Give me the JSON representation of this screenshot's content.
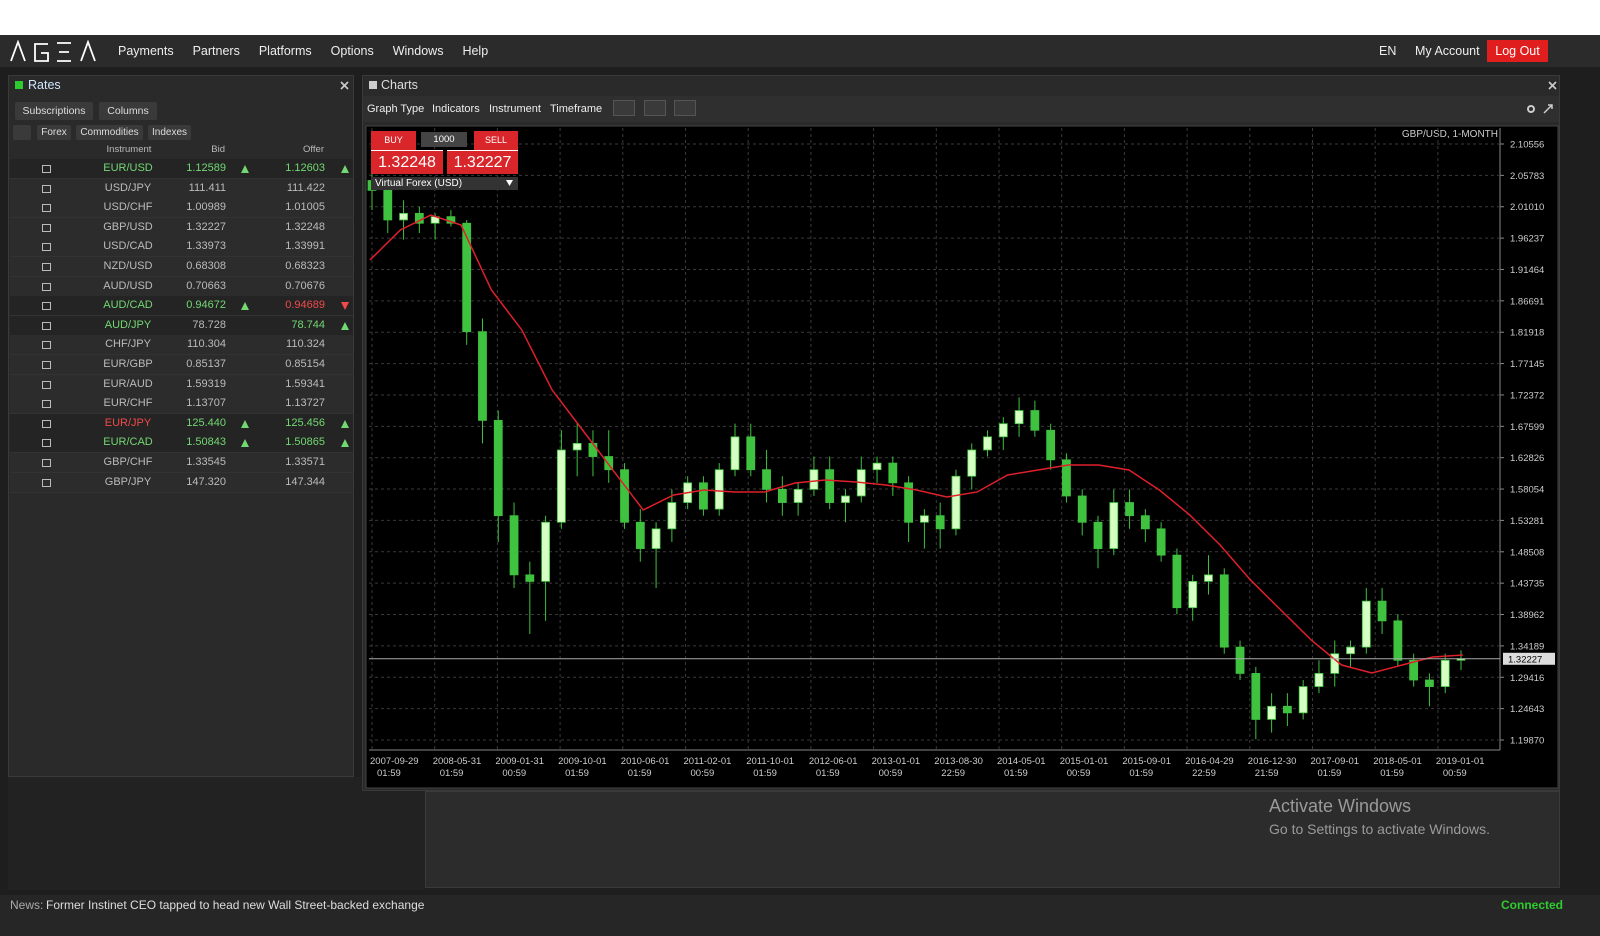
{
  "nav": {
    "menu": [
      "Payments",
      "Partners",
      "Platforms",
      "Options",
      "Windows",
      "Help"
    ],
    "language": "EN",
    "account": "My Account",
    "logout": "Log Out"
  },
  "rates": {
    "title": "Rates",
    "buttons": [
      "Subscriptions",
      "Columns"
    ],
    "tabs": [
      "Forex",
      "Commodities",
      "Indexes"
    ],
    "columns": [
      "Instrument",
      "Bid",
      "Offer"
    ],
    "rows": [
      {
        "instrument": "EUR/USD",
        "bid": "1.12589",
        "offer": "1.12603",
        "instrument_color": "#72d872",
        "bid_trend": "up",
        "offer_trend": "up"
      },
      {
        "instrument": "USD/JPY",
        "bid": "111.411",
        "offer": "111.422"
      },
      {
        "instrument": "USD/CHF",
        "bid": "1.00989",
        "offer": "1.01005"
      },
      {
        "instrument": "GBP/USD",
        "bid": "1.32227",
        "offer": "1.32248"
      },
      {
        "instrument": "USD/CAD",
        "bid": "1.33973",
        "offer": "1.33991"
      },
      {
        "instrument": "NZD/USD",
        "bid": "0.68308",
        "offer": "0.68323"
      },
      {
        "instrument": "AUD/USD",
        "bid": "0.70663",
        "offer": "0.70676"
      },
      {
        "instrument": "AUD/CAD",
        "bid": "0.94672",
        "offer": "0.94689",
        "instrument_color": "#72d872",
        "bid_trend": "up",
        "offer_trend": "down"
      },
      {
        "instrument": "AUD/JPY",
        "bid": "78.728",
        "offer": "78.744",
        "instrument_color": "#72d872",
        "offer_trend": "up"
      },
      {
        "instrument": "CHF/JPY",
        "bid": "110.304",
        "offer": "110.324"
      },
      {
        "instrument": "EUR/GBP",
        "bid": "0.85137",
        "offer": "0.85154"
      },
      {
        "instrument": "EUR/AUD",
        "bid": "1.59319",
        "offer": "1.59341"
      },
      {
        "instrument": "EUR/CHF",
        "bid": "1.13707",
        "offer": "1.13727"
      },
      {
        "instrument": "EUR/JPY",
        "bid": "125.440",
        "offer": "125.456",
        "instrument_color": "#f04a4a",
        "bid_trend": "up",
        "offer_trend": "up"
      },
      {
        "instrument": "EUR/CAD",
        "bid": "1.50843",
        "offer": "1.50865",
        "instrument_color": "#72d872",
        "bid_trend": "up",
        "offer_trend": "up"
      },
      {
        "instrument": "GBP/CHF",
        "bid": "1.33545",
        "offer": "1.33571"
      },
      {
        "instrument": "GBP/JPY",
        "bid": "147.320",
        "offer": "147.344"
      }
    ]
  },
  "charts": {
    "title": "Charts",
    "toolbar": [
      "Graph Type",
      "Indicators",
      "Instrument",
      "Timeframe"
    ],
    "trade": {
      "buy": "BUY",
      "amount": "1000",
      "sell": "SELL",
      "buy_price": "1.32248",
      "sell_price": "1.32227",
      "account": "Virtual Forex (USD)"
    }
  },
  "chart_data": {
    "type": "candlestick",
    "title": "GBP/USD, 1-MONTH",
    "x_labels": [
      "2007-09-29 01:59",
      "2008-05-31 01:59",
      "2009-01-31 00:59",
      "2009-10-01 01:59",
      "2010-06-01 01:59",
      "2011-02-01 00:59",
      "2011-10-01 01:59",
      "2012-06-01 01:59",
      "2013-01-01 00:59",
      "2013-08-30 22:59",
      "2014-05-01 01:59",
      "2015-01-01 00:59",
      "2015-09-01 01:59",
      "2016-04-29 22:59",
      "2016-12-30 21:59",
      "2017-09-01 01:59",
      "2018-05-01 01:59",
      "2019-01-01 00:59"
    ],
    "open": [
      2.05,
      2.035,
      1.99,
      2.0,
      1.985,
      1.995,
      1.985,
      1.82,
      1.685,
      1.54,
      1.45,
      1.44,
      1.53,
      1.64,
      1.65,
      1.63,
      1.61,
      1.53,
      1.49,
      1.52,
      1.56,
      1.59,
      1.55,
      1.61,
      1.66,
      1.61,
      1.58,
      1.56,
      1.58,
      1.61,
      1.56,
      1.57,
      1.61,
      1.62,
      1.59,
      1.53,
      1.54,
      1.52,
      1.6,
      1.64,
      1.66,
      1.68,
      1.7,
      1.67,
      1.625,
      1.57,
      1.53,
      1.49,
      1.56,
      1.54,
      1.52,
      1.48,
      1.4,
      1.44,
      1.45,
      1.34,
      1.3,
      1.23,
      1.25,
      1.24,
      1.28,
      1.3,
      1.33,
      1.34,
      1.41,
      1.38,
      1.32,
      1.29,
      1.28,
      1.32
    ],
    "high": [
      2.09,
      2.05,
      2.02,
      2.01,
      2.0,
      2.005,
      1.99,
      1.84,
      1.7,
      1.56,
      1.47,
      1.54,
      1.67,
      1.68,
      1.67,
      1.67,
      1.62,
      1.55,
      1.53,
      1.58,
      1.6,
      1.6,
      1.62,
      1.68,
      1.68,
      1.64,
      1.6,
      1.59,
      1.63,
      1.63,
      1.58,
      1.63,
      1.63,
      1.63,
      1.6,
      1.55,
      1.56,
      1.61,
      1.65,
      1.67,
      1.69,
      1.72,
      1.715,
      1.68,
      1.635,
      1.58,
      1.54,
      1.58,
      1.58,
      1.55,
      1.53,
      1.49,
      1.45,
      1.48,
      1.46,
      1.35,
      1.31,
      1.27,
      1.27,
      1.29,
      1.32,
      1.35,
      1.35,
      1.43,
      1.43,
      1.39,
      1.33,
      1.3,
      1.33,
      1.335
    ],
    "low": [
      2.005,
      1.97,
      1.96,
      1.97,
      1.96,
      1.98,
      1.8,
      1.65,
      1.5,
      1.43,
      1.36,
      1.38,
      1.52,
      1.6,
      1.6,
      1.59,
      1.52,
      1.47,
      1.43,
      1.5,
      1.55,
      1.54,
      1.54,
      1.6,
      1.6,
      1.56,
      1.54,
      1.54,
      1.57,
      1.55,
      1.53,
      1.56,
      1.59,
      1.57,
      1.5,
      1.49,
      1.49,
      1.51,
      1.58,
      1.63,
      1.64,
      1.66,
      1.66,
      1.61,
      1.56,
      1.51,
      1.46,
      1.48,
      1.52,
      1.5,
      1.47,
      1.39,
      1.38,
      1.42,
      1.33,
      1.29,
      1.2,
      1.21,
      1.22,
      1.23,
      1.27,
      1.28,
      1.31,
      1.33,
      1.36,
      1.31,
      1.28,
      1.25,
      1.27,
      1.305
    ],
    "close": [
      2.035,
      1.99,
      2.0,
      1.985,
      1.995,
      1.985,
      1.82,
      1.685,
      1.54,
      1.45,
      1.44,
      1.53,
      1.64,
      1.65,
      1.63,
      1.61,
      1.53,
      1.49,
      1.52,
      1.56,
      1.59,
      1.55,
      1.61,
      1.66,
      1.61,
      1.58,
      1.56,
      1.58,
      1.61,
      1.56,
      1.57,
      1.61,
      1.62,
      1.59,
      1.53,
      1.54,
      1.52,
      1.6,
      1.64,
      1.66,
      1.68,
      1.7,
      1.67,
      1.625,
      1.57,
      1.53,
      1.49,
      1.56,
      1.54,
      1.52,
      1.48,
      1.4,
      1.44,
      1.45,
      1.34,
      1.3,
      1.23,
      1.25,
      1.24,
      1.28,
      1.3,
      1.33,
      1.34,
      1.41,
      1.38,
      1.32,
      1.29,
      1.28,
      1.32,
      1.3223
    ],
    "up_color": "#d6ffc4",
    "down_color": "#3fc23f",
    "series": [
      {
        "color": "#e0202a",
        "values": [
          1.9291,
          1.9747,
          1.9975,
          1.9823,
          1.8834,
          1.8226,
          1.7312,
          1.6704,
          1.6095,
          1.5487,
          1.5715,
          1.5791,
          1.5761,
          1.5761,
          1.5897,
          1.5943,
          1.5913,
          1.5867,
          1.5791,
          1.5685,
          1.5761,
          1.6019,
          1.6095,
          1.6171,
          1.6171,
          1.6095,
          1.5791,
          1.5411,
          1.4954,
          1.4422,
          1.3965,
          1.3509,
          1.3128,
          1.3006,
          1.3128,
          1.325,
          1.328
        ]
      }
    ],
    "ylim": [
      1.18653,
      2.12686
    ],
    "yticks": [
      2.10556,
      2.05783,
      {
        "value": 2.0101,
        "label": "2.01010"
      },
      1.96237,
      1.91464,
      1.86691,
      1.81918,
      1.77145,
      1.72372,
      1.67599,
      1.62826,
      1.58054,
      1.53281,
      1.48508,
      1.43735,
      1.38962,
      1.34189,
      1.29416,
      1.24643,
      {
        "value": 1.1987,
        "label": "1.19870"
      }
    ],
    "last_price": 1.32227,
    "grid": true
  },
  "watermark": {
    "title": "Activate Windows",
    "subtitle": "Go to Settings to activate Windows."
  },
  "status": {
    "news_label": "News:",
    "news": "Former Instinet CEO tapped to head new Wall Street-backed exchange",
    "connection": "Connected"
  }
}
